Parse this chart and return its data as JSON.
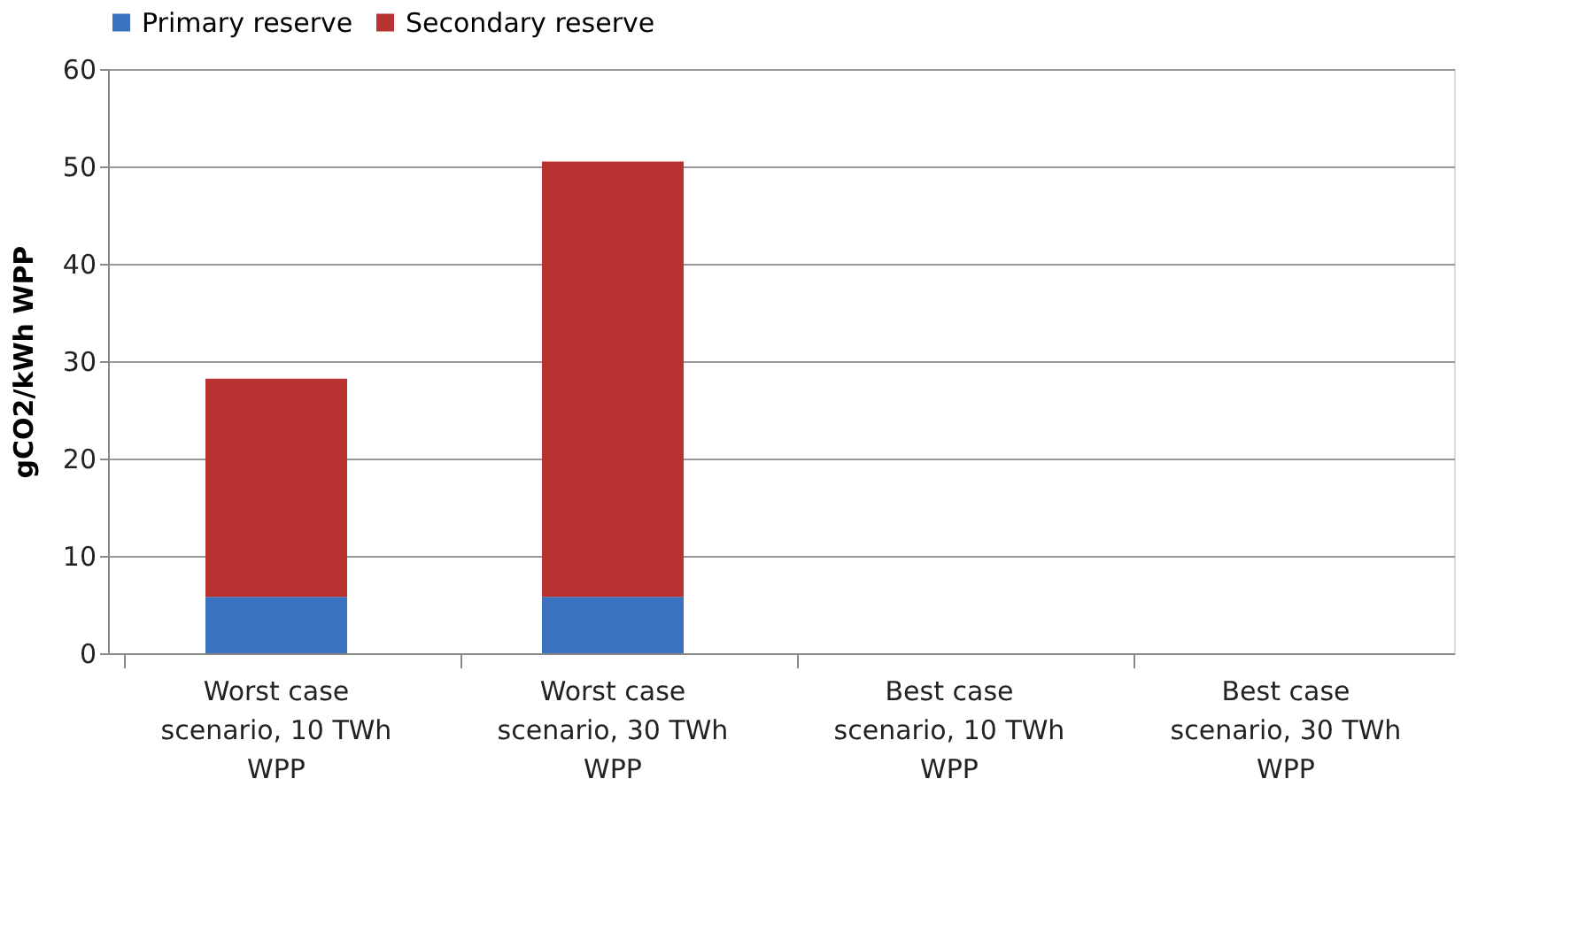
{
  "chart_data": {
    "type": "bar",
    "stacked": true,
    "ylabel": "gCO2/kWh WPP",
    "categories": [
      "Worst case scenario, 10 TWh WPP",
      "Worst case scenario, 30 TWh WPP",
      "Best case scenario, 10 TWh WPP",
      "Best case scenario, 30 TWh WPP"
    ],
    "series": [
      {
        "name": "Primary reserve",
        "color": "#3a72c0",
        "values": [
          5.8,
          5.8,
          null,
          null
        ]
      },
      {
        "name": "Secondary reserve",
        "color": "#b83232",
        "values": [
          22.4,
          44.7,
          null,
          null
        ]
      }
    ],
    "ylim": [
      0,
      60
    ],
    "yticks": [
      0,
      10,
      20,
      30,
      40,
      50,
      60
    ],
    "grid": "y",
    "legend": "top"
  }
}
